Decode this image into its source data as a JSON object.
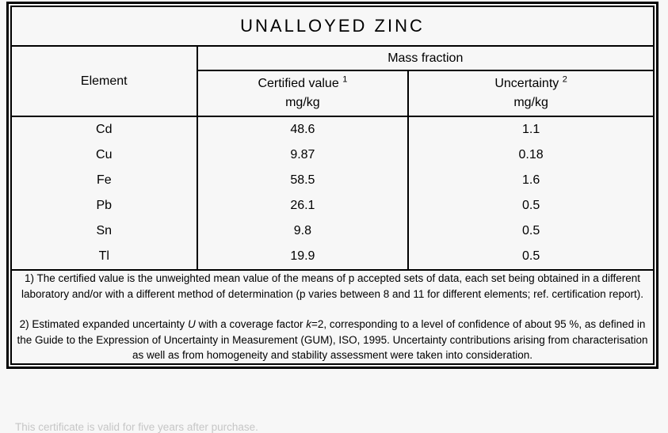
{
  "page": {
    "background": "#f7f7f7",
    "border_color": "#000000",
    "text_color": "#000000"
  },
  "table": {
    "title": "UNALLOYED ZINC",
    "header": {
      "element_label": "Element",
      "group_label": "Mass fraction",
      "certified": {
        "label": "Certified value",
        "sup": "1",
        "unit": "mg/kg"
      },
      "uncertainty": {
        "label": "Uncertainty",
        "sup": "2",
        "unit": "mg/kg"
      }
    },
    "rows": [
      {
        "element": "Cd",
        "certified": "48.6",
        "uncertainty": "1.1"
      },
      {
        "element": "Cu",
        "certified": "9.87",
        "uncertainty": "0.18"
      },
      {
        "element": "Fe",
        "certified": "58.5",
        "uncertainty": "1.6"
      },
      {
        "element": "Pb",
        "certified": "26.1",
        "uncertainty": "0.5"
      },
      {
        "element": "Sn",
        "certified": "9.8",
        "uncertainty": "0.5"
      },
      {
        "element": "Tl",
        "certified": "19.9",
        "uncertainty": "0.5"
      }
    ]
  },
  "footnotes": {
    "note1": {
      "text": "1) The certified value is the unweighted mean value of the means of p accepted sets of data, each set being obtained in a different laboratory and/or with a different method of determination (p varies between 8 and 11 for different elements; ref. certification report)."
    },
    "note2": {
      "parts": [
        {
          "text": "2) Estimated expanded uncertainty "
        },
        {
          "text": "U",
          "italic": true
        },
        {
          "text": " with a coverage factor "
        },
        {
          "text": "k",
          "italic": true
        },
        {
          "text": "=2, corresponding to a level of confidence of about 95 %, as defined in the Guide to the Expression of Uncertainty in Measurement (GUM), ISO, 1995. Uncertainty contributions arising from characterisation as well as from homogeneity and stability assessment were taken into consideration."
        }
      ]
    }
  },
  "caption": {
    "text": "This certificate is valid for five years after purchase."
  }
}
